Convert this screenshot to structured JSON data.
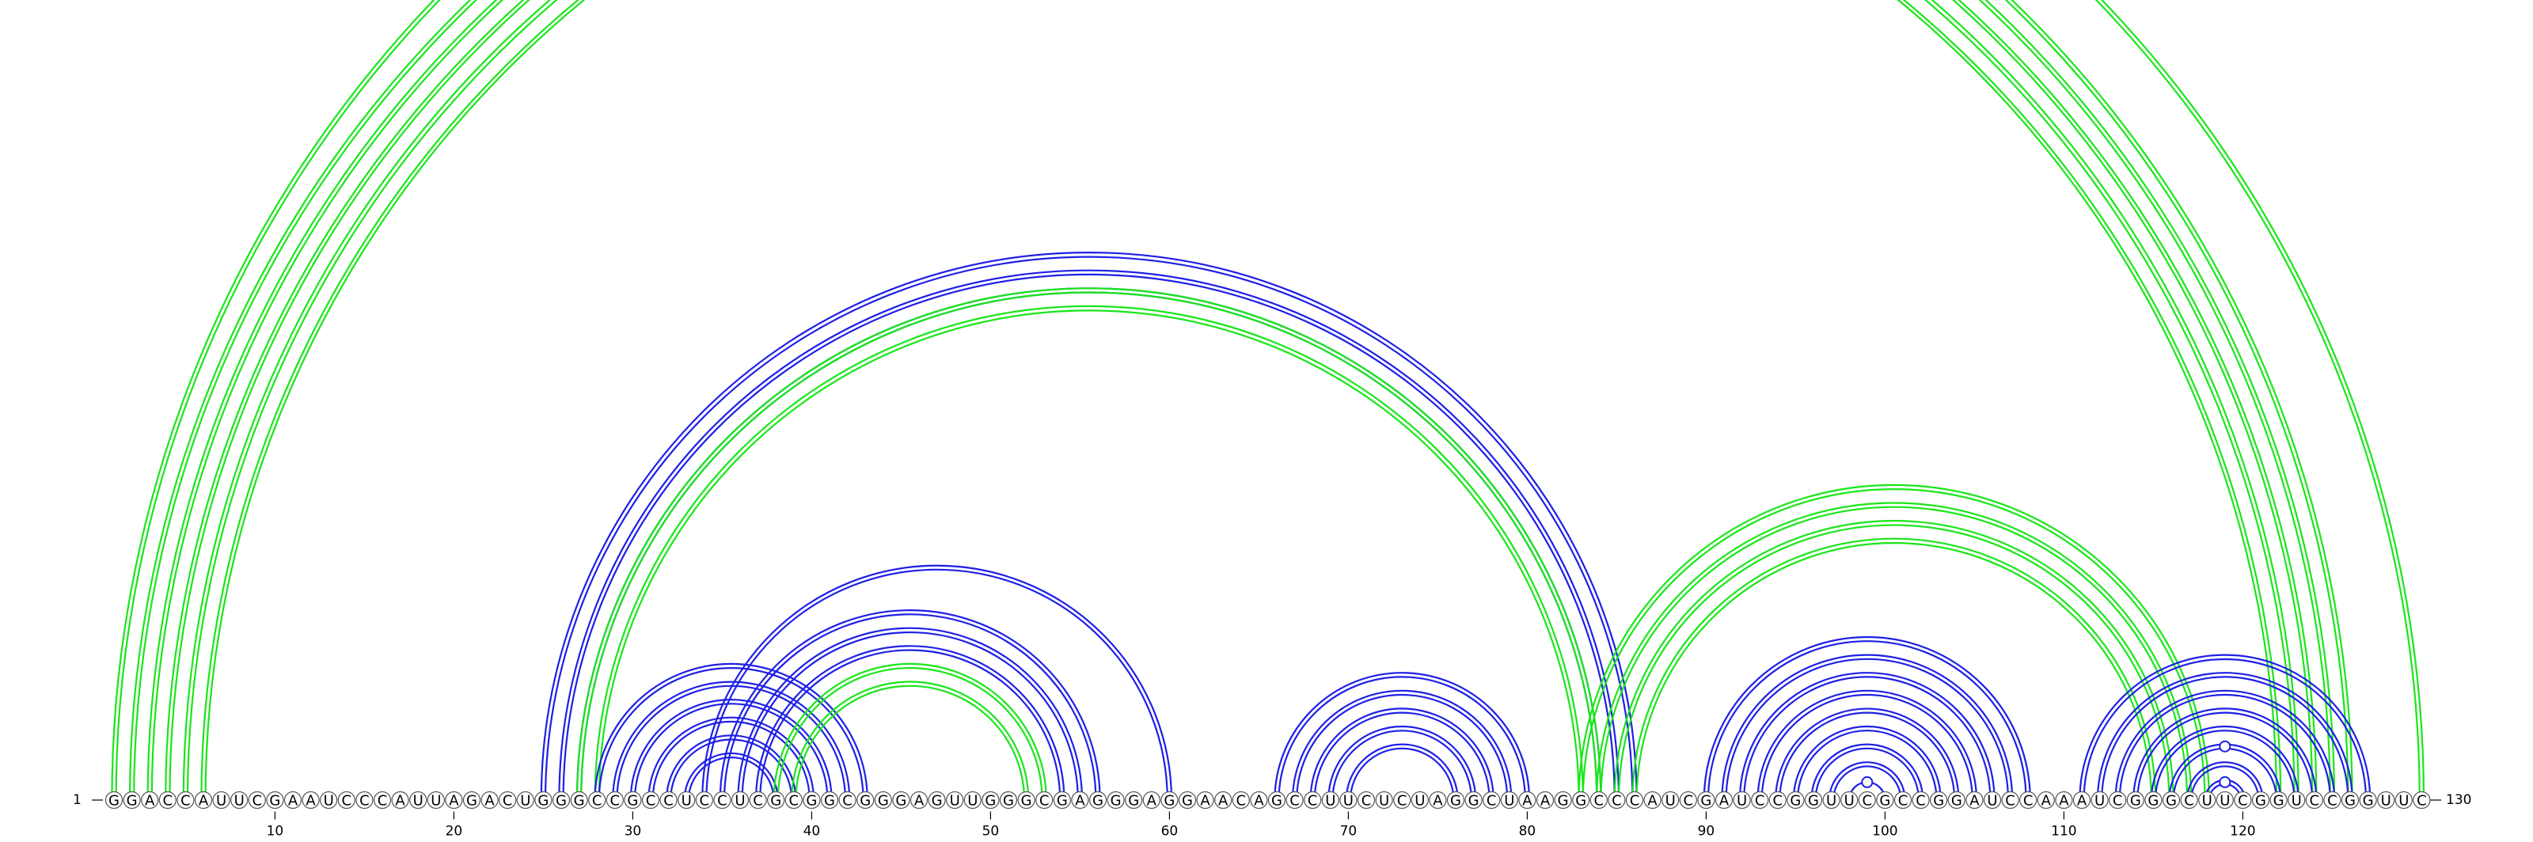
{
  "diagram": {
    "sequence": "GGACCAUUCGAAUCCCAUUAGACUGGGCCGCCUCCUCGCGGCGGGAGUUGGGCGAGGGAGGAACAGCCUUCUCUAGGCUAAGGCCCAUCGAUCCGGUUCGCCGGAUCCAAAUCGGGCUUCGGUCCGGUUC",
    "length": 130,
    "start_label": "1",
    "end_label": "130",
    "tick_positions": [
      10,
      20,
      30,
      40,
      50,
      60,
      70,
      80,
      90,
      100,
      110,
      120
    ],
    "colors": {
      "blue": "#1f1fe6",
      "green": "#19e619"
    },
    "helices": [
      {
        "color": "green",
        "i": [
          2,
          3,
          4,
          5,
          6
        ],
        "j": [
          126,
          125,
          124,
          123,
          122
        ],
        "double": true
      },
      {
        "color": "green",
        "i": [
          1
        ],
        "j": [
          130
        ],
        "double": true
      },
      {
        "color": "blue",
        "i": [
          25,
          26,
          27
        ],
        "j": [
          86,
          85,
          84
        ],
        "double": true
      },
      {
        "color": "green",
        "i": [
          27,
          28
        ],
        "j": [
          84,
          83
        ],
        "double": true
      },
      {
        "color": "blue",
        "i": [
          28,
          29,
          30,
          31,
          32,
          33
        ],
        "j": [
          43,
          42,
          41,
          40,
          39,
          38
        ],
        "double": true
      },
      {
        "color": "blue",
        "i": [
          34,
          35,
          36,
          37
        ],
        "j": [
          60,
          56,
          55,
          54
        ],
        "double": true
      },
      {
        "color": "green",
        "i": [
          38,
          39
        ],
        "j": [
          53,
          52
        ],
        "double": true
      },
      {
        "color": "blue",
        "i": [
          66,
          67,
          68,
          69,
          70
        ],
        "j": [
          80,
          79,
          78,
          77,
          76
        ],
        "double": true
      },
      {
        "color": "green",
        "i": [
          83,
          84,
          85,
          86
        ],
        "j": [
          118,
          117,
          116,
          115
        ],
        "double": true
      },
      {
        "color": "blue",
        "i": [
          90,
          91,
          92,
          93,
          94,
          95,
          96,
          97
        ],
        "j": [
          108,
          107,
          106,
          105,
          104,
          103,
          102,
          101
        ],
        "double": true
      },
      {
        "color": "blue",
        "i": [
          98
        ],
        "j": [
          100
        ],
        "double": false,
        "marker": true
      },
      {
        "color": "blue",
        "i": [
          111,
          112,
          113,
          114,
          115
        ],
        "j": [
          127,
          126,
          125,
          124,
          123
        ],
        "double": true
      },
      {
        "color": "blue",
        "i": [
          116,
          117,
          118
        ],
        "j": [
          122,
          121,
          120
        ],
        "double": true,
        "markers": [
          1,
          0,
          1
        ]
      }
    ],
    "top_marker": {
      "color": "green",
      "i": 1,
      "j": 130,
      "arc": true
    }
  }
}
